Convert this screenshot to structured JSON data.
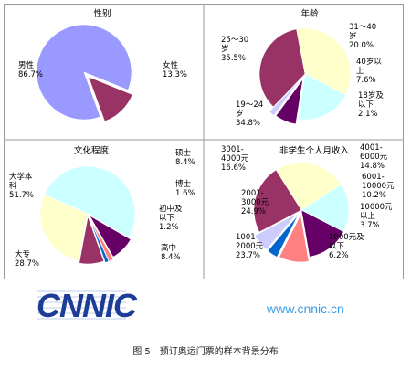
{
  "chart_data": [
    {
      "type": "pie",
      "title": "性别",
      "slices": [
        {
          "label": [
            "男性"
          ],
          "value_text": "86.7%",
          "value": 86.7,
          "color": "#9999ff"
        },
        {
          "label": [
            "女性"
          ],
          "value_text": "13.3%",
          "value": 13.3,
          "color": "#993366"
        }
      ]
    },
    {
      "type": "pie",
      "title": "年龄",
      "slices": [
        {
          "label": [
            "31～40",
            "岁"
          ],
          "value_text": "20.0%",
          "value": 20.0,
          "color": "#ccffff"
        },
        {
          "label": [
            "40岁以",
            "上"
          ],
          "value_text": "7.6%",
          "value": 7.6,
          "color": "#660066"
        },
        {
          "label": [
            "18岁及",
            "以下"
          ],
          "value_text": "2.1%",
          "value": 2.1,
          "color": "#ccccff"
        },
        {
          "label": [
            "19～24",
            "岁"
          ],
          "value_text": "34.8%",
          "value": 34.8,
          "color": "#993366"
        },
        {
          "label": [
            "25～30",
            "岁"
          ],
          "value_text": "35.5%",
          "value": 35.5,
          "color": "#ffffcc"
        }
      ]
    },
    {
      "type": "pie",
      "title": "文化程度",
      "slices": [
        {
          "label": [
            "硕士"
          ],
          "value_text": "8.4%",
          "value": 8.4,
          "color": "#660066"
        },
        {
          "label": [
            "博士"
          ],
          "value_text": "1.6%",
          "value": 1.6,
          "color": "#ff8080"
        },
        {
          "label": [
            "初中及",
            "以下"
          ],
          "value_text": "1.2%",
          "value": 1.2,
          "color": "#0066cc"
        },
        {
          "label": [
            "高中"
          ],
          "value_text": "8.4%",
          "value": 8.4,
          "color": "#993366"
        },
        {
          "label": [
            "大专"
          ],
          "value_text": "28.7%",
          "value": 28.7,
          "color": "#ffffcc"
        },
        {
          "label": [
            "大学本",
            "科"
          ],
          "value_text": "51.7%",
          "value": 51.7,
          "color": "#ccffff"
        }
      ]
    },
    {
      "type": "pie",
      "title": "非学生个人月收入",
      "slices": [
        {
          "label": [
            "4001-",
            "6000元"
          ],
          "value_text": "14.8%",
          "value": 14.8,
          "color": "#660066"
        },
        {
          "label": [
            "6001-",
            "10000元"
          ],
          "value_text": "10.2%",
          "value": 10.2,
          "color": "#ff8080"
        },
        {
          "label": [
            "10000元",
            "以上"
          ],
          "value_text": "3.7%",
          "value": 3.7,
          "color": "#0066cc"
        },
        {
          "label": [
            "1000元及",
            "以下"
          ],
          "value_text": "6.2%",
          "value": 6.2,
          "color": "#ccccff"
        },
        {
          "label": [
            "1001-",
            "2000元"
          ],
          "value_text": "23.7%",
          "value": 23.7,
          "color": "#993366"
        },
        {
          "label": [
            "2001-",
            "3000元"
          ],
          "value_text": "24.9%",
          "value": 24.9,
          "color": "#ffffcc"
        },
        {
          "label": [
            "3001-",
            "4000元"
          ],
          "value_text": "16.6%",
          "value": 16.6,
          "color": "#ccffff"
        }
      ]
    }
  ],
  "brand": {
    "logo_text": "CNNIC",
    "site_url": "www.cnnic.cn"
  },
  "caption": "图 5　预订奥运门票的样本背景分布"
}
